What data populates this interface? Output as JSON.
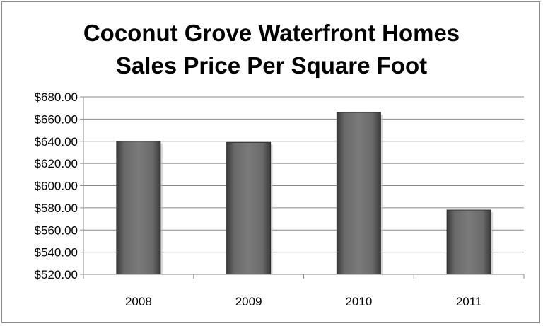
{
  "chart_data": {
    "type": "bar",
    "title_lines": [
      "Coconut Grove Waterfront  Homes",
      "Sales Price Per Square Foot"
    ],
    "categories": [
      "2008",
      "2009",
      "2010",
      "2011"
    ],
    "values": [
      640,
      639,
      666,
      578
    ],
    "ylim": [
      520,
      680
    ],
    "ytick_values": [
      520,
      540,
      560,
      580,
      600,
      620,
      640,
      660,
      680
    ],
    "ytick_labels": [
      "$520.00",
      "$540.00",
      "$560.00",
      "$580.00",
      "$600.00",
      "$620.00",
      "$640.00",
      "$660.00",
      "$680.00"
    ],
    "grid": true,
    "legend": "none",
    "bar_color": "#5f5f5f"
  }
}
